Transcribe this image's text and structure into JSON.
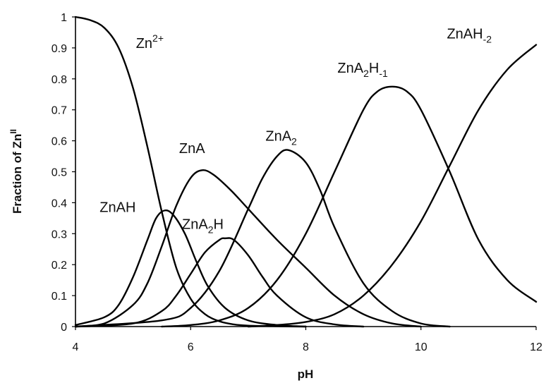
{
  "chart_data": {
    "type": "line",
    "title": "",
    "xlabel": "pH",
    "ylabel": "Fraction of Zn",
    "ylabel_sup": "II",
    "xlim": [
      4,
      12
    ],
    "ylim": [
      0,
      1
    ],
    "x_ticks": [
      4,
      6,
      8,
      10,
      12
    ],
    "y_ticks": [
      0,
      0.1,
      0.2,
      0.3,
      0.4,
      0.5,
      0.6,
      0.7,
      0.8,
      0.9,
      1
    ],
    "y_tick_labels": [
      "0",
      "0.1",
      "0.2",
      "0.3",
      "0.4",
      "0.5",
      "0.6",
      "0.7",
      "0.8",
      "0.9",
      "1"
    ],
    "x_tick_labels": [
      "4",
      "6",
      "8",
      "10",
      "12"
    ],
    "grid": false,
    "legend": "none",
    "series": [
      {
        "id": "zn2",
        "label": {
          "base": "Zn",
          "sup": "2+",
          "sub": "",
          "rest": "",
          "sub2": ""
        },
        "label_at": [
          5.05,
          0.9
        ],
        "x": [
          4,
          4.25,
          4.5,
          4.75,
          5,
          5.25,
          5.5,
          5.75,
          6,
          6.25,
          6.5,
          6.75,
          7,
          7.5,
          8
        ],
        "y": [
          1.0,
          0.99,
          0.965,
          0.9,
          0.77,
          0.58,
          0.37,
          0.19,
          0.09,
          0.04,
          0.017,
          0.007,
          0.003,
          0.001,
          0.0
        ]
      },
      {
        "id": "znah",
        "label": {
          "base": "ZnAH",
          "sup": "",
          "sub": "",
          "rest": "",
          "sub2": ""
        },
        "label_at": [
          4.42,
          0.37
        ],
        "x": [
          4,
          4.5,
          4.75,
          5,
          5.25,
          5.4,
          5.55,
          5.7,
          5.9,
          6.1,
          6.3,
          6.6,
          7,
          7.5,
          8
        ],
        "y": [
          0.005,
          0.03,
          0.07,
          0.16,
          0.28,
          0.35,
          0.375,
          0.36,
          0.3,
          0.21,
          0.13,
          0.06,
          0.02,
          0.005,
          0.0
        ]
      },
      {
        "id": "zna",
        "label": {
          "base": "ZnA",
          "sup": "",
          "sub": "",
          "rest": "",
          "sub2": ""
        },
        "label_at": [
          5.8,
          0.56
        ],
        "x": [
          4,
          4.5,
          5,
          5.25,
          5.5,
          5.75,
          6,
          6.2,
          6.4,
          6.7,
          7,
          7.5,
          8,
          8.5,
          9,
          9.5,
          10
        ],
        "y": [
          0.0,
          0.01,
          0.07,
          0.14,
          0.26,
          0.39,
          0.48,
          0.505,
          0.49,
          0.44,
          0.38,
          0.28,
          0.19,
          0.1,
          0.04,
          0.01,
          0.0
        ]
      },
      {
        "id": "zna2h",
        "label": {
          "base": "ZnA",
          "sup": "",
          "sub": "2",
          "rest": "H",
          "sub2": ""
        },
        "label_at": [
          5.85,
          0.315
        ],
        "x": [
          4,
          5,
          5.5,
          5.75,
          6,
          6.25,
          6.5,
          6.6,
          6.75,
          7,
          7.25,
          7.5,
          8,
          8.5,
          9
        ],
        "y": [
          0.0,
          0.01,
          0.05,
          0.1,
          0.17,
          0.24,
          0.28,
          0.285,
          0.28,
          0.23,
          0.16,
          0.1,
          0.03,
          0.007,
          0.0
        ]
      },
      {
        "id": "zna2",
        "label": {
          "base": "ZnA",
          "sup": "",
          "sub": "2",
          "rest": "",
          "sub2": ""
        },
        "label_at": [
          7.3,
          0.6
        ],
        "x": [
          4,
          5.5,
          6,
          6.5,
          7,
          7.25,
          7.5,
          7.7,
          8,
          8.25,
          8.5,
          9,
          9.5,
          10,
          10.5
        ],
        "y": [
          0.0,
          0.02,
          0.06,
          0.18,
          0.38,
          0.48,
          0.55,
          0.57,
          0.53,
          0.44,
          0.32,
          0.14,
          0.05,
          0.01,
          0.0
        ]
      },
      {
        "id": "zna2h-1",
        "label": {
          "base": "ZnA",
          "sup": "",
          "sub": "2",
          "rest": "H",
          "sub2": "-1"
        },
        "label_at": [
          8.55,
          0.82
        ],
        "x": [
          5.5,
          6,
          6.5,
          7,
          7.5,
          8,
          8.5,
          9,
          9.25,
          9.5,
          9.75,
          10,
          10.5,
          11,
          11.5,
          12
        ],
        "y": [
          0.0,
          0.005,
          0.02,
          0.06,
          0.15,
          0.3,
          0.5,
          0.7,
          0.76,
          0.775,
          0.76,
          0.7,
          0.5,
          0.28,
          0.15,
          0.08
        ]
      },
      {
        "id": "znah-2",
        "label": {
          "base": "ZnAH",
          "sup": "",
          "sub": "-2",
          "rest": "",
          "sub2": ""
        },
        "label_at": [
          10.45,
          0.93
        ],
        "x": [
          7,
          7.5,
          8,
          8.5,
          9,
          9.5,
          10,
          10.5,
          11,
          11.5,
          12
        ],
        "y": [
          0.0,
          0.005,
          0.015,
          0.04,
          0.1,
          0.2,
          0.34,
          0.52,
          0.7,
          0.83,
          0.91
        ]
      }
    ]
  }
}
